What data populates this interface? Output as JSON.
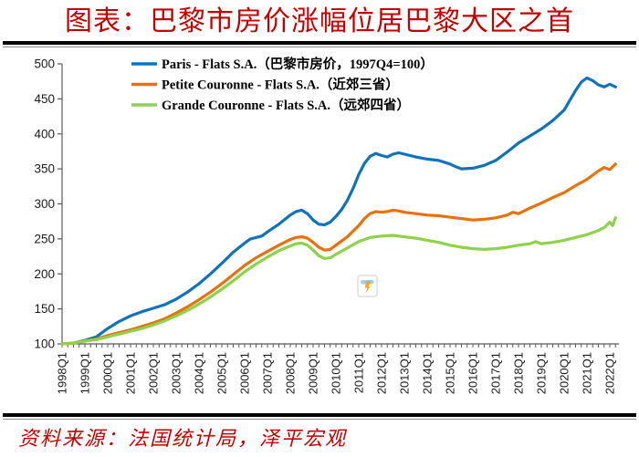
{
  "title": "图表：巴黎市房价涨幅位居巴黎大区之首",
  "source_note": "资料来源：法国统计局，泽平宏观",
  "colors": {
    "title_text": "#C00000",
    "source_text": "#C00000",
    "axis": "#595959",
    "tick_label": "#1a1a1a",
    "legend_text": "#000000"
  },
  "watermark": {
    "name": "zeping-macro-logo",
    "border_color": "#cccccc",
    "bar_color": "#A9C9EA",
    "bolt_color": "#F5A623"
  },
  "chart_data": {
    "type": "line",
    "title": "图表：巴黎市房价涨幅位居巴黎大区之首",
    "xlabel": "",
    "ylabel": "",
    "y_axis": {
      "min": 100,
      "max": 500,
      "step": 50
    },
    "x_axis": {
      "tick_labels": [
        "1998Q1",
        "1999Q1",
        "2000Q1",
        "2001Q1",
        "2002Q1",
        "2003Q1",
        "2004Q1",
        "2005Q1",
        "2006Q1",
        "2007Q1",
        "2008Q1",
        "2009Q1",
        "2010Q1",
        "2011Q1",
        "2012Q1",
        "2013Q1",
        "2014Q1",
        "2015Q1",
        "2016Q1",
        "2017Q1",
        "2018Q1",
        "2019Q1",
        "2020Q1",
        "2021Q1",
        "2022Q1"
      ],
      "minor_tick_every_quarters": 1,
      "range": [
        1998.0,
        2022.25
      ]
    },
    "grid": false,
    "legend_position": "top-left-inside",
    "base_note": "1997Q4=100",
    "series": [
      {
        "name": "Paris - Flats S.A.（巴黎市房价，1997Q4=100）",
        "color": "#1272B9",
        "points": [
          [
            1998,
            100
          ],
          [
            1998.5,
            101
          ],
          [
            1999,
            105
          ],
          [
            1999.5,
            110
          ],
          [
            2000,
            122
          ],
          [
            2000.5,
            132
          ],
          [
            2001,
            140
          ],
          [
            2001.5,
            146
          ],
          [
            2002,
            151
          ],
          [
            2002.5,
            156
          ],
          [
            2003,
            164
          ],
          [
            2003.5,
            174
          ],
          [
            2004,
            186
          ],
          [
            2004.5,
            200
          ],
          [
            2005,
            215
          ],
          [
            2005.5,
            231
          ],
          [
            2006,
            244
          ],
          [
            2006.25,
            250
          ],
          [
            2006.75,
            254
          ],
          [
            2007,
            260
          ],
          [
            2007.5,
            271
          ],
          [
            2008,
            284
          ],
          [
            2008.25,
            289
          ],
          [
            2008.5,
            291
          ],
          [
            2008.75,
            286
          ],
          [
            2009,
            277
          ],
          [
            2009.25,
            271
          ],
          [
            2009.5,
            270
          ],
          [
            2009.75,
            274
          ],
          [
            2010,
            282
          ],
          [
            2010.25,
            292
          ],
          [
            2010.5,
            305
          ],
          [
            2010.75,
            322
          ],
          [
            2011,
            342
          ],
          [
            2011.25,
            358
          ],
          [
            2011.5,
            368
          ],
          [
            2011.75,
            372
          ],
          [
            2012,
            369
          ],
          [
            2012.25,
            367
          ],
          [
            2012.5,
            371
          ],
          [
            2012.75,
            373
          ],
          [
            2013,
            371
          ],
          [
            2013.25,
            369
          ],
          [
            2013.5,
            367
          ],
          [
            2014,
            364
          ],
          [
            2014.5,
            362
          ],
          [
            2015,
            357
          ],
          [
            2015.25,
            353
          ],
          [
            2015.5,
            350
          ],
          [
            2016,
            351
          ],
          [
            2016.5,
            355
          ],
          [
            2017,
            362
          ],
          [
            2017.5,
            374
          ],
          [
            2018,
            387
          ],
          [
            2018.5,
            397
          ],
          [
            2019,
            407
          ],
          [
            2019.5,
            419
          ],
          [
            2020,
            434
          ],
          [
            2020.25,
            448
          ],
          [
            2020.5,
            462
          ],
          [
            2020.75,
            474
          ],
          [
            2021,
            480
          ],
          [
            2021.25,
            476
          ],
          [
            2021.5,
            470
          ],
          [
            2021.75,
            467
          ],
          [
            2022,
            471
          ],
          [
            2022.25,
            467
          ]
        ]
      },
      {
        "name": "Petite Couronne - Flats S.A.（近郊三省）",
        "color": "#E8710D",
        "points": [
          [
            1998,
            100
          ],
          [
            1998.5,
            101
          ],
          [
            1999,
            104
          ],
          [
            1999.5,
            107
          ],
          [
            2000,
            112
          ],
          [
            2000.5,
            116
          ],
          [
            2001,
            120
          ],
          [
            2001.5,
            125
          ],
          [
            2002,
            130
          ],
          [
            2002.5,
            136
          ],
          [
            2003,
            144
          ],
          [
            2003.5,
            153
          ],
          [
            2004,
            163
          ],
          [
            2004.5,
            174
          ],
          [
            2005,
            186
          ],
          [
            2005.5,
            199
          ],
          [
            2006,
            212
          ],
          [
            2006.5,
            223
          ],
          [
            2007,
            232
          ],
          [
            2007.5,
            241
          ],
          [
            2008,
            249
          ],
          [
            2008.25,
            252
          ],
          [
            2008.5,
            253
          ],
          [
            2008.75,
            251
          ],
          [
            2009,
            245
          ],
          [
            2009.25,
            238
          ],
          [
            2009.5,
            234
          ],
          [
            2009.75,
            235
          ],
          [
            2010,
            241
          ],
          [
            2010.5,
            253
          ],
          [
            2011,
            269
          ],
          [
            2011.25,
            279
          ],
          [
            2011.5,
            286
          ],
          [
            2011.75,
            289
          ],
          [
            2012,
            288
          ],
          [
            2012.25,
            289
          ],
          [
            2012.5,
            291
          ],
          [
            2012.75,
            290
          ],
          [
            2013,
            288
          ],
          [
            2013.5,
            286
          ],
          [
            2014,
            284
          ],
          [
            2014.5,
            283
          ],
          [
            2015,
            281
          ],
          [
            2015.5,
            279
          ],
          [
            2016,
            277
          ],
          [
            2016.5,
            278
          ],
          [
            2017,
            280
          ],
          [
            2017.5,
            284
          ],
          [
            2017.75,
            288
          ],
          [
            2018,
            286
          ],
          [
            2018.25,
            290
          ],
          [
            2018.5,
            294
          ],
          [
            2019,
            301
          ],
          [
            2019.5,
            309
          ],
          [
            2020,
            316
          ],
          [
            2020.5,
            326
          ],
          [
            2021,
            335
          ],
          [
            2021.25,
            341
          ],
          [
            2021.5,
            347
          ],
          [
            2021.75,
            352
          ],
          [
            2022,
            349
          ],
          [
            2022.25,
            357
          ]
        ]
      },
      {
        "name": "Grande Couronne - Flats S.A.（远郊四省）",
        "color": "#8ED14B",
        "points": [
          [
            1998,
            100
          ],
          [
            1998.5,
            101
          ],
          [
            1999,
            104
          ],
          [
            1999.5,
            106
          ],
          [
            2000,
            110
          ],
          [
            2000.5,
            114
          ],
          [
            2001,
            118
          ],
          [
            2001.5,
            122
          ],
          [
            2002,
            127
          ],
          [
            2002.5,
            133
          ],
          [
            2003,
            140
          ],
          [
            2003.5,
            148
          ],
          [
            2004,
            157
          ],
          [
            2004.5,
            167
          ],
          [
            2005,
            178
          ],
          [
            2005.5,
            190
          ],
          [
            2006,
            203
          ],
          [
            2006.5,
            214
          ],
          [
            2007,
            224
          ],
          [
            2007.5,
            233
          ],
          [
            2008,
            240
          ],
          [
            2008.25,
            243
          ],
          [
            2008.5,
            244
          ],
          [
            2008.75,
            241
          ],
          [
            2009,
            234
          ],
          [
            2009.25,
            226
          ],
          [
            2009.5,
            222
          ],
          [
            2009.75,
            223
          ],
          [
            2010,
            228
          ],
          [
            2010.5,
            237
          ],
          [
            2011,
            246
          ],
          [
            2011.5,
            252
          ],
          [
            2012,
            254
          ],
          [
            2012.5,
            255
          ],
          [
            2013,
            253
          ],
          [
            2013.5,
            251
          ],
          [
            2014,
            248
          ],
          [
            2014.5,
            245
          ],
          [
            2015,
            241
          ],
          [
            2015.5,
            238
          ],
          [
            2016,
            236
          ],
          [
            2016.5,
            235
          ],
          [
            2017,
            236
          ],
          [
            2017.5,
            238
          ],
          [
            2018,
            241
          ],
          [
            2018.5,
            243
          ],
          [
            2018.75,
            246
          ],
          [
            2019,
            243
          ],
          [
            2019.5,
            245
          ],
          [
            2020,
            248
          ],
          [
            2020.5,
            252
          ],
          [
            2021,
            256
          ],
          [
            2021.25,
            259
          ],
          [
            2021.5,
            262
          ],
          [
            2021.75,
            266
          ],
          [
            2022,
            274
          ],
          [
            2022.125,
            269
          ],
          [
            2022.25,
            280
          ]
        ]
      }
    ]
  }
}
